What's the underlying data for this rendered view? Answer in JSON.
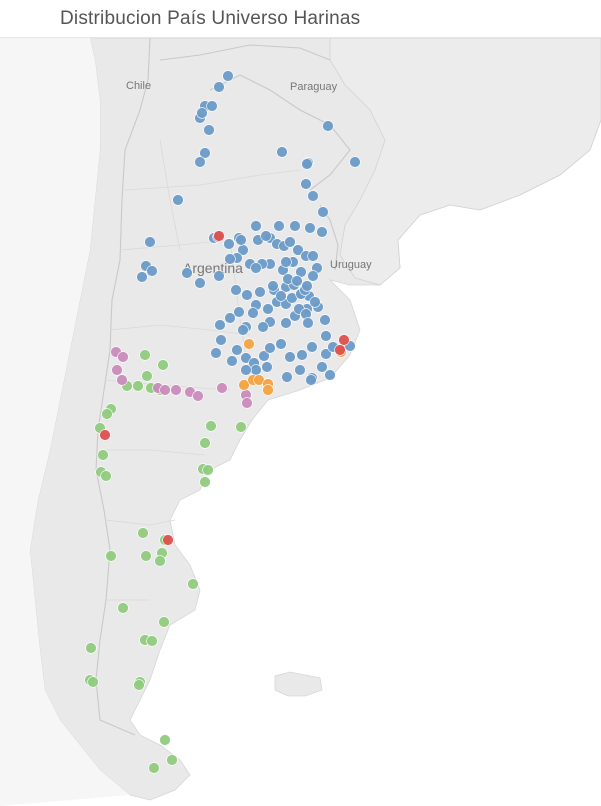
{
  "header": {
    "title": "Distribucion País Universo Harinas"
  },
  "map": {
    "countries": [
      {
        "name": "Chile"
      },
      {
        "name": "Paraguay"
      },
      {
        "name": "Argentina"
      },
      {
        "name": "Uruguay"
      }
    ],
    "colors": {
      "land": "#e9e9e9",
      "background": "#f3f3f3",
      "water": "#ffffff",
      "border": "#cfcfcf",
      "blue": "#6b9bc7",
      "green": "#8fcb7d",
      "pink": "#c98bba",
      "orange": "#f4a33f",
      "red": "#df4f4f"
    }
  }
}
